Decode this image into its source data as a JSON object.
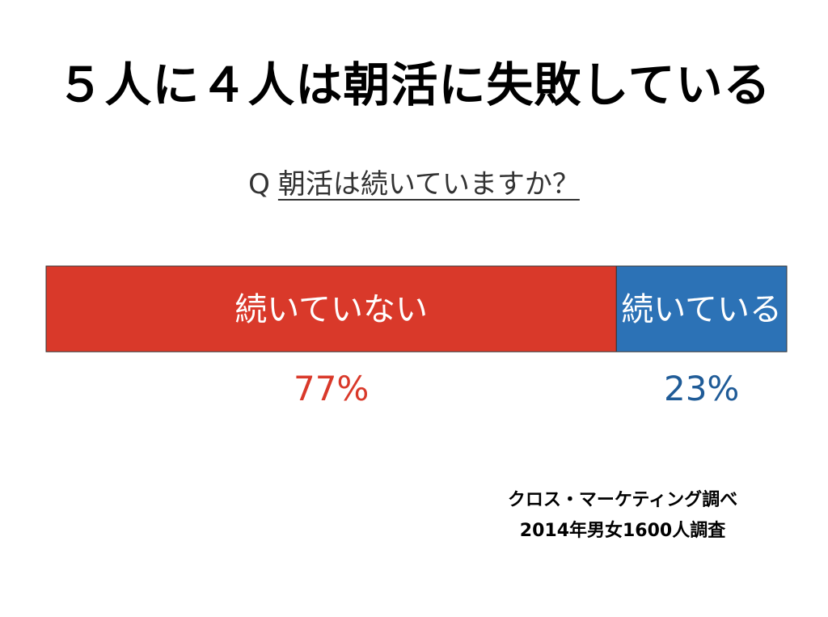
{
  "title": "５人に４人は朝活に失敗している",
  "question": {
    "prefix": "Q",
    "text": "朝活は続いていますか？"
  },
  "chart_data": {
    "type": "bar",
    "stacked": true,
    "orientation": "horizontal",
    "categories": [
      "続いていない",
      "続いている"
    ],
    "values": [
      77,
      23
    ],
    "value_labels": [
      "77%",
      "23%"
    ],
    "unit": "%",
    "colors": [
      "#d9392a",
      "#2c72b6"
    ],
    "label_colors": [
      "#d9392a",
      "#1f5b97"
    ]
  },
  "source": {
    "line1": "クロス・マーケティング調べ",
    "line2": "2014年男女1600人調査"
  }
}
